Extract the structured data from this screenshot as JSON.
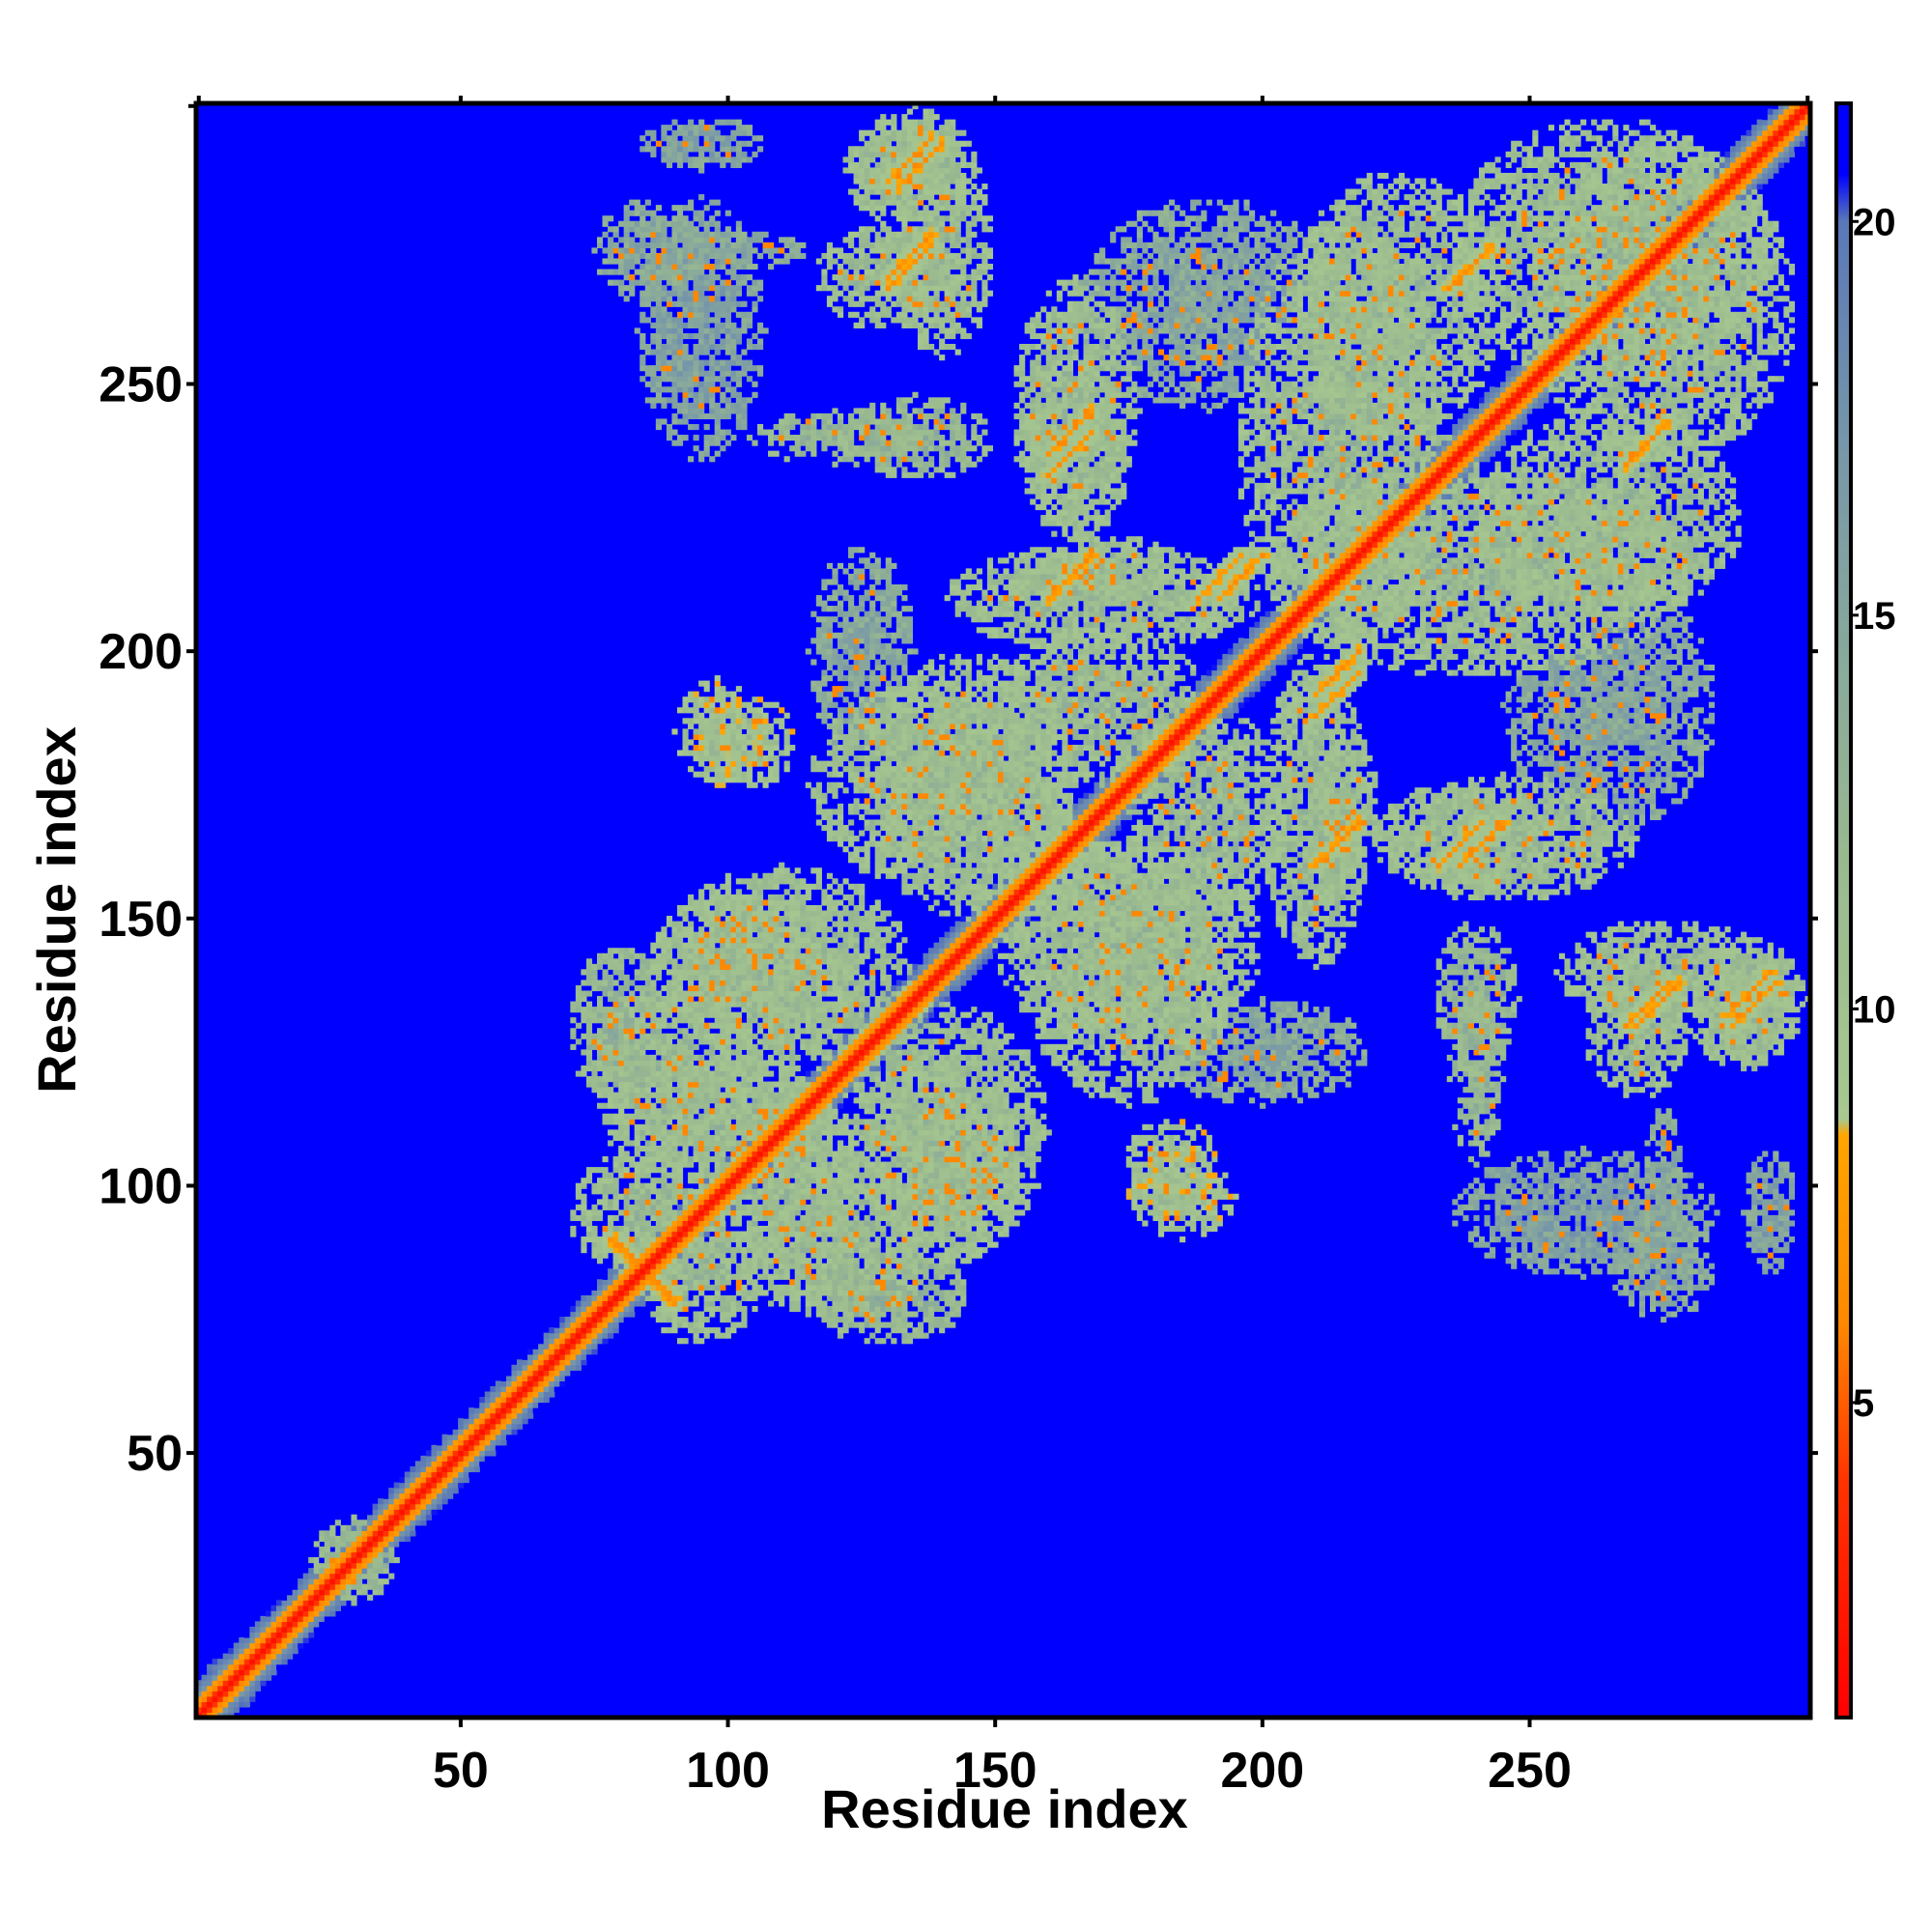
{
  "chart_data": {
    "type": "heatmap",
    "title": "",
    "xlabel": "Residue index",
    "ylabel": "Residue index",
    "xlim": [
      1,
      302
    ],
    "ylim": [
      1,
      302
    ],
    "x_ticks": [
      {
        "value": 50,
        "label": "50"
      },
      {
        "value": 100,
        "label": "100"
      },
      {
        "value": 150,
        "label": "150"
      },
      {
        "value": 200,
        "label": "200"
      },
      {
        "value": 250,
        "label": "250"
      }
    ],
    "y_ticks": [
      {
        "value": 50,
        "label": "50"
      },
      {
        "value": 100,
        "label": "100"
      },
      {
        "value": 150,
        "label": "150"
      },
      {
        "value": 200,
        "label": "200"
      },
      {
        "value": 250,
        "label": "250"
      }
    ],
    "colorbar": {
      "range": [
        1,
        21.5
      ],
      "ticks": [
        {
          "value": 5,
          "label": "5"
        },
        {
          "value": 10,
          "label": "10"
        },
        {
          "value": 15,
          "label": "15"
        },
        {
          "value": 20,
          "label": "20"
        }
      ],
      "stops": [
        {
          "value": 1,
          "color": "#ff0000"
        },
        {
          "value": 4,
          "color": "#ff3300"
        },
        {
          "value": 6,
          "color": "#ff8800"
        },
        {
          "value": 8.4,
          "color": "#ffa500"
        },
        {
          "value": 8.6,
          "color": "#a8c890"
        },
        {
          "value": 12,
          "color": "#98b890"
        },
        {
          "value": 17,
          "color": "#7898a8"
        },
        {
          "value": 20,
          "color": "#5a78b8"
        },
        {
          "value": 20.6,
          "color": "#0000ff"
        },
        {
          "value": 21.5,
          "color": "#0000ff"
        }
      ]
    },
    "background_value": 21,
    "background_color": "#0000ff",
    "grid": false,
    "legend": "right",
    "diagonal": {
      "from": 1,
      "to": 302,
      "value": 2
    },
    "contact_bands": [
      {
        "i1": 1,
        "j1": 1,
        "i2": 70,
        "j2": 70,
        "width": 5,
        "value": 11
      },
      {
        "i1": 70,
        "j1": 70,
        "i2": 302,
        "j2": 302,
        "width": 6,
        "value": 11
      },
      {
        "i1": 78,
        "j1": 90,
        "i2": 90,
        "j2": 78,
        "width": 1.5,
        "value": 6
      },
      {
        "i1": 130,
        "j1": 270,
        "i2": 138,
        "j2": 278,
        "width": 1.5,
        "value": 6
      },
      {
        "i1": 132,
        "j1": 287,
        "i2": 140,
        "j2": 295,
        "width": 1.5,
        "value": 6
      },
      {
        "i1": 160,
        "j1": 237,
        "i2": 168,
        "j2": 245,
        "width": 1.5,
        "value": 6
      },
      {
        "i1": 160,
        "j1": 210,
        "i2": 168,
        "j2": 218,
        "width": 1.5,
        "value": 6
      },
      {
        "i1": 188,
        "j1": 210,
        "i2": 196,
        "j2": 218,
        "width": 1.5,
        "value": 6
      },
      {
        "i1": 210,
        "j1": 160,
        "i2": 218,
        "j2": 168,
        "width": 1.5,
        "value": 6
      },
      {
        "i1": 210,
        "j1": 192,
        "i2": 218,
        "j2": 200,
        "width": 1.5,
        "value": 6
      },
      {
        "i1": 233,
        "j1": 160,
        "i2": 241,
        "j2": 168,
        "width": 1.5,
        "value": 6
      },
      {
        "i1": 235,
        "j1": 268,
        "i2": 243,
        "j2": 276,
        "width": 1.5,
        "value": 6
      },
      {
        "i1": 268,
        "j1": 235,
        "i2": 276,
        "j2": 243,
        "width": 1.5,
        "value": 6
      },
      {
        "i1": 268,
        "j1": 130,
        "i2": 276,
        "j2": 138,
        "width": 1.5,
        "value": 6
      },
      {
        "i1": 288,
        "j1": 130,
        "i2": 296,
        "j2": 138,
        "width": 1.5,
        "value": 6
      }
    ],
    "contact_clusters": [
      {
        "x": 130,
        "y": 270,
        "rx": 14,
        "ry": 10,
        "value": 12
      },
      {
        "x": 133,
        "y": 290,
        "rx": 12,
        "ry": 10,
        "value": 12
      },
      {
        "x": 120,
        "y": 240,
        "rx": 16,
        "ry": 5,
        "value": 13
      },
      {
        "x": 165,
        "y": 245,
        "rx": 12,
        "ry": 25,
        "value": 12
      },
      {
        "x": 170,
        "y": 215,
        "rx": 15,
        "ry": 7,
        "value": 12
      },
      {
        "x": 225,
        "y": 265,
        "rx": 20,
        "ry": 25,
        "value": 12
      },
      {
        "x": 275,
        "y": 265,
        "rx": 25,
        "ry": 30,
        "value": 12
      },
      {
        "x": 240,
        "y": 215,
        "rx": 40,
        "ry": 20,
        "value": 12
      },
      {
        "x": 210,
        "y": 170,
        "rx": 10,
        "ry": 30,
        "value": 12
      },
      {
        "x": 240,
        "y": 165,
        "rx": 15,
        "ry": 10,
        "value": 12
      },
      {
        "x": 240,
        "y": 135,
        "rx": 8,
        "ry": 15,
        "value": 13
      },
      {
        "x": 275,
        "y": 140,
        "rx": 20,
        "ry": 10,
        "value": 12
      },
      {
        "x": 290,
        "y": 135,
        "rx": 12,
        "ry": 12,
        "value": 12
      },
      {
        "x": 98,
        "y": 185,
        "rx": 8,
        "ry": 10,
        "value": 11
      },
      {
        "x": 183,
        "y": 103,
        "rx": 9,
        "ry": 10,
        "value": 11
      },
      {
        "x": 140,
        "y": 175,
        "rx": 25,
        "ry": 20,
        "value": 12
      },
      {
        "x": 175,
        "y": 145,
        "rx": 25,
        "ry": 20,
        "value": 12
      },
      {
        "x": 105,
        "y": 140,
        "rx": 20,
        "ry": 15,
        "value": 12
      },
      {
        "x": 100,
        "y": 110,
        "rx": 20,
        "ry": 15,
        "value": 12
      },
      {
        "x": 140,
        "y": 110,
        "rx": 20,
        "ry": 25,
        "value": 12
      },
      {
        "x": 120,
        "y": 90,
        "rx": 20,
        "ry": 15,
        "value": 12
      },
      {
        "x": 85,
        "y": 95,
        "rx": 15,
        "ry": 12,
        "value": 12
      },
      {
        "x": 80,
        "y": 130,
        "rx": 10,
        "ry": 15,
        "value": 13
      },
      {
        "x": 85,
        "y": 275,
        "rx": 10,
        "ry": 10,
        "value": 15
      },
      {
        "x": 100,
        "y": 275,
        "rx": 15,
        "ry": 4,
        "value": 15
      },
      {
        "x": 200,
        "y": 125,
        "rx": 20,
        "ry": 10,
        "value": 15
      },
      {
        "x": 260,
        "y": 95,
        "rx": 25,
        "ry": 12,
        "value": 16
      },
      {
        "x": 295,
        "y": 95,
        "rx": 5,
        "ry": 12,
        "value": 16
      },
      {
        "x": 265,
        "y": 190,
        "rx": 20,
        "ry": 25,
        "value": 15
      },
      {
        "x": 170,
        "y": 190,
        "rx": 20,
        "ry": 15,
        "value": 12
      },
      {
        "x": 30,
        "y": 30,
        "rx": 8,
        "ry": 8,
        "value": 13
      }
    ]
  }
}
